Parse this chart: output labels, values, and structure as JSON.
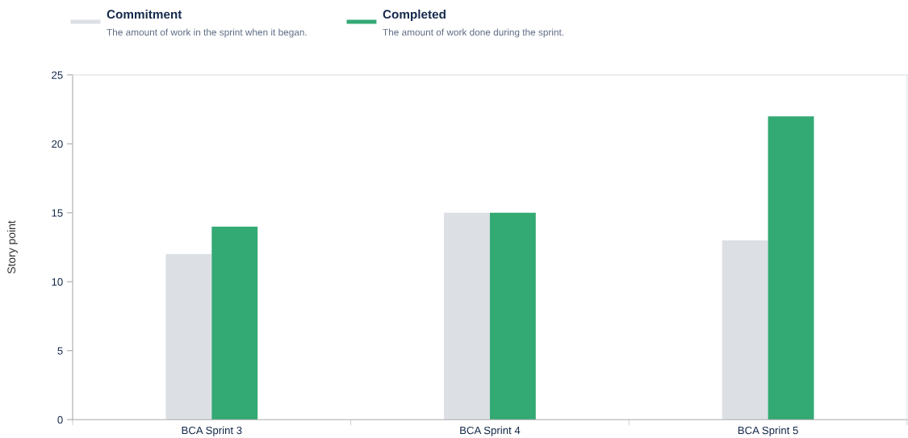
{
  "chart_data": {
    "type": "bar",
    "ylabel": "Story point",
    "categories": [
      "BCA Sprint 3",
      "BCA Sprint 4",
      "BCA Sprint 5"
    ],
    "series": [
      {
        "name": "Commitment",
        "color": "#dcdfe4",
        "values": [
          12,
          15,
          13
        ]
      },
      {
        "name": "Completed",
        "color": "#33a974",
        "values": [
          14,
          15,
          22
        ]
      }
    ],
    "annotations": [
      "The amount of work in the sprint when it began.",
      "The amount of work done during the sprint."
    ],
    "ylim": [
      0,
      25
    ],
    "yticks": [
      0,
      5,
      10,
      15,
      20,
      25
    ],
    "grid": false,
    "legend": "top left"
  }
}
